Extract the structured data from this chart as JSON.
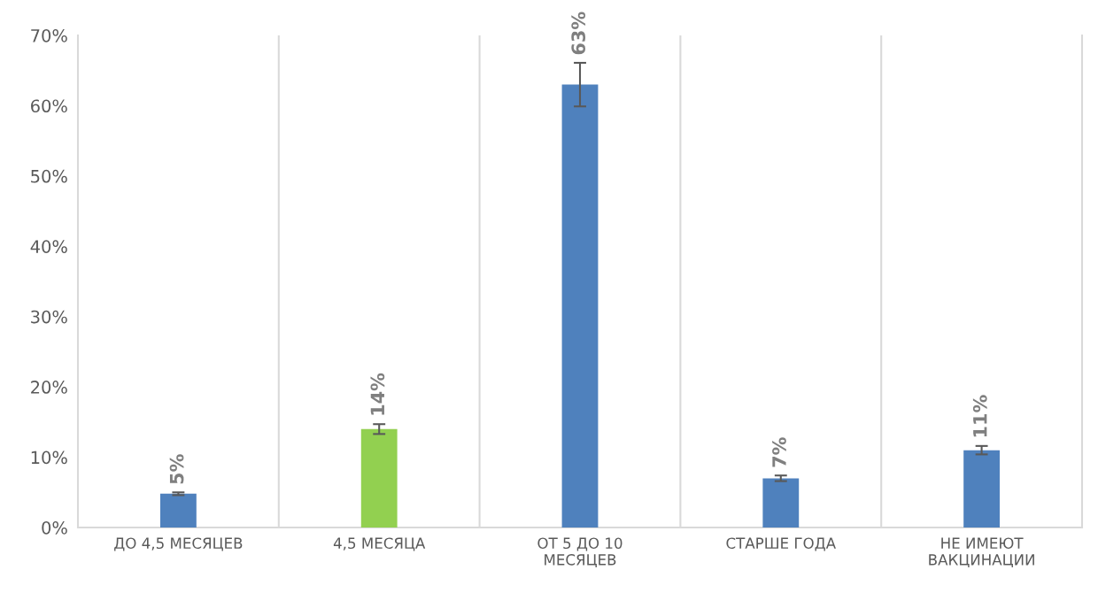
{
  "chart_data": {
    "type": "bar",
    "categories": [
      "ДО 4,5 МЕСЯЦЕВ",
      "4,5 МЕСЯЦА",
      "ОТ 5 ДО 10\nМЕСЯЦЕВ",
      "СТАРШЕ ГОДА",
      "НЕ ИМЕЮТ\nВАКЦИНАЦИИ"
    ],
    "values": [
      4.8,
      14,
      63,
      7,
      11
    ],
    "colors": [
      "#4f81bd",
      "#92d050",
      "#4f81bd",
      "#4f81bd",
      "#4f81bd"
    ],
    "errors": [
      0.2,
      0.7,
      3.1,
      0.4,
      0.6
    ],
    "value_labels": [
      "5%",
      "14%",
      "63%",
      "7%",
      "11%"
    ],
    "ylim": [
      0,
      70
    ],
    "yticks": [
      {
        "value": 0,
        "label": "0%"
      },
      {
        "value": 10,
        "label": "10%"
      },
      {
        "value": 20,
        "label": "20%"
      },
      {
        "value": 30,
        "label": "30%"
      },
      {
        "value": 40,
        "label": "40%"
      },
      {
        "value": 50,
        "label": "50%"
      },
      {
        "value": 60,
        "label": "60%"
      },
      {
        "value": 70,
        "label": "70%"
      }
    ],
    "grid": "x",
    "legend": false
  }
}
